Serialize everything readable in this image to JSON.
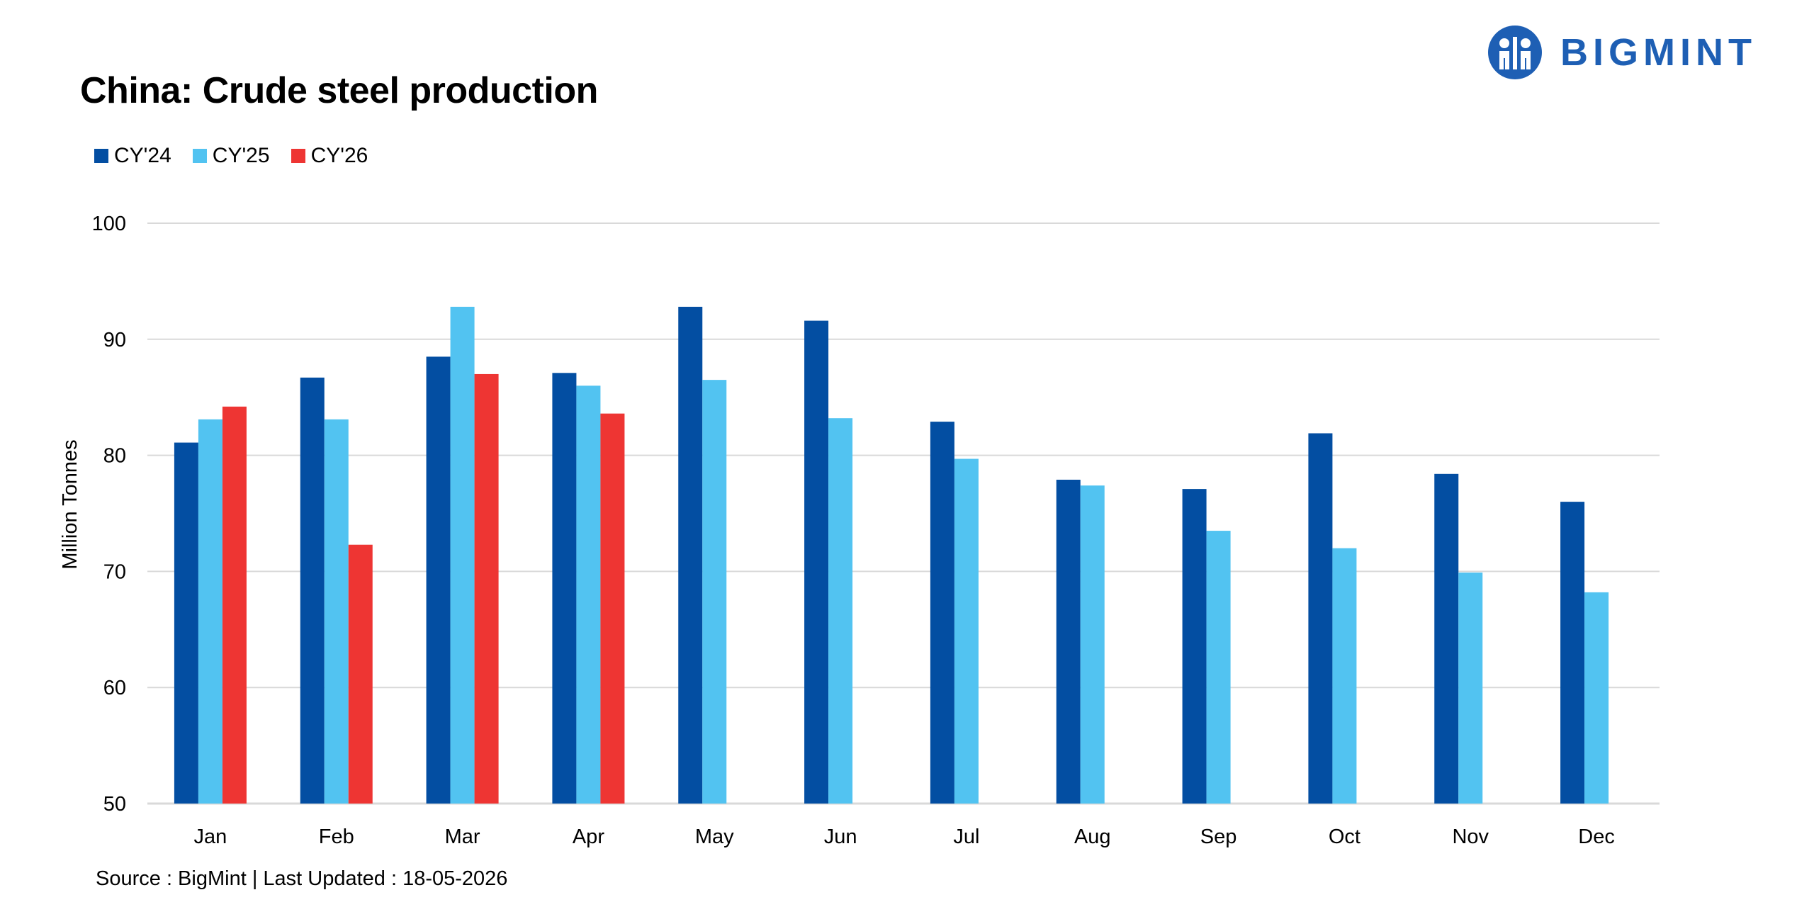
{
  "header": {
    "title": "China: Crude steel production",
    "logo_text": "BIGMINT"
  },
  "colors": {
    "cy24": "#034ea2",
    "cy25": "#52c3f1",
    "cy26": "#ee3533",
    "gridline": "#d9d9d9",
    "brand": "#1e5fb4"
  },
  "chart_data": {
    "type": "bar",
    "title": "China: Crude steel production",
    "xlabel": "",
    "ylabel": "Million Tonnes",
    "ylim": [
      50,
      100
    ],
    "yticks": [
      50,
      60,
      70,
      80,
      90,
      100
    ],
    "grid": true,
    "legend_position": "top-left",
    "categories": [
      "Jan",
      "Feb",
      "Mar",
      "Apr",
      "May",
      "Jun",
      "Jul",
      "Aug",
      "Sep",
      "Oct",
      "Nov",
      "Dec"
    ],
    "series": [
      {
        "name": "CY'24",
        "color": "#034ea2",
        "values": [
          81.1,
          86.7,
          88.5,
          87.1,
          92.8,
          91.6,
          82.9,
          77.9,
          77.1,
          81.9,
          78.4,
          76.0
        ]
      },
      {
        "name": "CY'25",
        "color": "#52c3f1",
        "values": [
          83.1,
          83.1,
          92.8,
          86.0,
          86.5,
          83.2,
          79.7,
          77.4,
          73.5,
          72.0,
          69.9,
          68.2
        ]
      },
      {
        "name": "CY'26",
        "color": "#ee3533",
        "values": [
          84.2,
          72.3,
          87.0,
          83.6,
          null,
          null,
          null,
          null,
          null,
          null,
          null,
          null
        ]
      }
    ]
  },
  "footer": {
    "source": "Source : BigMint | Last Updated : 18-05-2026"
  }
}
